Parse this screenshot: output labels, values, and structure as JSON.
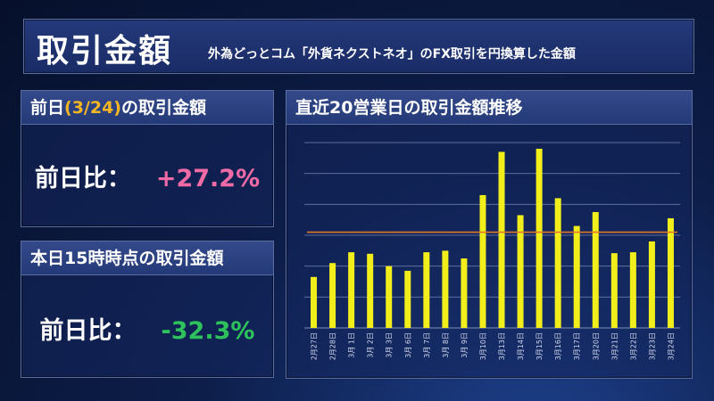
{
  "header": {
    "title": "取引金額",
    "subtitle": "外為どっとコム「外貨ネクストネオ」のFX取引を円換算した金額"
  },
  "prev_day_box": {
    "title_pre": "前日",
    "title_date": "(3/24)",
    "title_post": "の取引金額",
    "metric_label": "前日比：",
    "metric_value": "+27.2%"
  },
  "today_box": {
    "title": "本日15時時点の取引金額",
    "metric_label": "前日比：",
    "metric_value": "-32.3%"
  },
  "colors": {
    "up": "#f06aa6",
    "down": "#2ec25c",
    "bar": "#f1ee1c",
    "avg_line": "#e0782a",
    "highlight": "#f5b623"
  },
  "chart_data": {
    "type": "bar",
    "title": "直近20営業日の取引金額推移",
    "categories": [
      "2月27日",
      "2月28日",
      "3月 1日",
      "3月 2日",
      "3月 3日",
      "3月 6日",
      "3月 7日",
      "3月 8日",
      "3月 9日",
      "3月10日",
      "3月13日",
      "3月14日",
      "3月15日",
      "3月16日",
      "3月17日",
      "3月20日",
      "3月21日",
      "3月22日",
      "3月23日",
      "3月24日"
    ],
    "values": [
      1.65,
      2.1,
      2.45,
      2.4,
      2.0,
      1.85,
      2.45,
      2.5,
      2.25,
      4.3,
      5.7,
      3.65,
      5.8,
      4.2,
      3.3,
      3.75,
      2.42,
      2.45,
      2.8,
      3.55
    ],
    "average": 3.1,
    "ylim": [
      0,
      6
    ],
    "grid": true,
    "xlabel": "",
    "ylabel": ""
  }
}
